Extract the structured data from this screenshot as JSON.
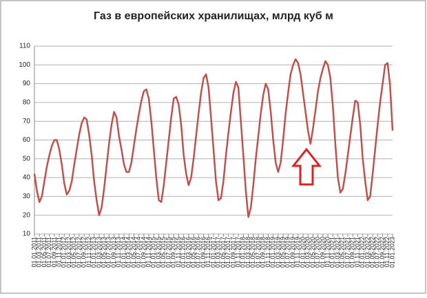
{
  "chart_data": {
    "type": "line",
    "title": "Газ в европейских хранилищах,  млрд куб м",
    "categories": [
      "01.01.2011",
      null,
      "01.03.2011",
      null,
      "01.05.2011",
      null,
      "01.07.2011",
      null,
      "01.09.2011",
      null,
      "01.11.2011",
      null,
      "01.01.2012",
      null,
      "01.03.2012",
      null,
      "01.05.2012",
      null,
      "01.07.2012",
      null,
      "01.09.2012",
      null,
      "01.11.2012",
      null,
      "01.01.2013",
      null,
      "01.03.2013",
      null,
      "01.05.2013",
      null,
      "01.07.2013",
      null,
      "01.09.2013",
      null,
      "01.11.2013",
      null,
      "01.01.2014",
      null,
      "01.03.2014",
      null,
      "01.05.2014",
      null,
      "01.07.2014",
      null,
      "01.09.2014",
      null,
      "01.11.2014",
      null,
      "01.01.2015",
      null,
      "01.03.2015",
      null,
      "01.05.2015",
      null,
      "01.07.2015",
      null,
      "01.09.2015",
      null,
      "01.11.2015",
      null,
      "01.01.2016",
      null,
      "01.03.2016",
      null,
      "01.05.2016",
      null,
      "01.07.2016",
      null,
      "01.09.2016",
      null,
      "01.11.2016",
      null,
      "01.01.2017",
      null,
      "01.03.2017",
      null,
      "01.05.2017",
      null,
      "01.07.2017",
      null,
      "01.09.2017",
      null,
      "01.11.2017",
      null,
      "01.01.2018",
      null,
      "01.03.2018",
      null,
      "01.05.2018",
      null,
      "01.07.2018",
      null,
      "01.09.2018",
      null,
      "01.11.2018",
      null,
      "01.01.2019",
      null,
      "01.03.2019",
      null,
      "01.05.2019",
      null,
      "01.07.2019",
      null,
      "01.09.2019",
      null,
      "01.11.2019",
      null,
      "01.01.2020",
      null,
      "01.03.2020",
      null,
      "01.05.2020",
      null,
      "01.07.2020",
      null,
      "01.09.2020",
      null,
      "01.11.2020",
      null,
      "01.01.2021",
      null,
      "01.03.2021",
      null,
      "01.05.2021",
      null,
      "01.07.2021",
      null,
      "01.09.2021",
      null,
      "01.11.2021",
      null,
      "01.01.2022",
      null,
      "01.03.2022",
      null,
      "01.05.2022",
      null,
      "01.07.2022",
      null,
      "01.09.2022",
      null,
      "01.11.2022",
      null,
      "01.01.2023"
    ],
    "values": [
      42,
      33,
      27,
      30,
      38,
      46,
      52,
      57,
      60,
      60,
      55,
      47,
      37,
      31,
      33,
      38,
      47,
      55,
      63,
      69,
      72,
      71,
      63,
      52,
      38,
      28,
      20,
      24,
      34,
      46,
      58,
      68,
      75,
      72,
      62,
      55,
      47,
      43,
      43,
      48,
      57,
      66,
      74,
      81,
      86,
      87,
      82,
      70,
      55,
      40,
      28,
      27,
      36,
      48,
      60,
      72,
      82,
      83,
      79,
      68,
      52,
      42,
      36,
      40,
      50,
      62,
      74,
      85,
      93,
      95,
      88,
      72,
      55,
      38,
      28,
      29,
      38,
      52,
      64,
      75,
      85,
      91,
      88,
      70,
      52,
      33,
      19,
      24,
      36,
      50,
      62,
      74,
      84,
      90,
      87,
      75,
      60,
      48,
      43,
      48,
      60,
      74,
      85,
      95,
      100,
      103,
      101,
      95,
      85,
      75,
      65,
      58,
      66,
      76,
      86,
      93,
      98,
      102,
      100,
      93,
      78,
      58,
      40,
      32,
      34,
      42,
      52,
      62,
      72,
      81,
      80,
      68,
      50,
      38,
      28,
      30,
      42,
      55,
      68,
      80,
      90,
      100,
      101,
      89,
      65
    ],
    "color": "#c0504d",
    "ylim": [
      10,
      110
    ],
    "yticks": [
      10,
      20,
      30,
      40,
      50,
      60,
      70,
      80,
      90,
      100,
      110
    ],
    "grid": true
  }
}
